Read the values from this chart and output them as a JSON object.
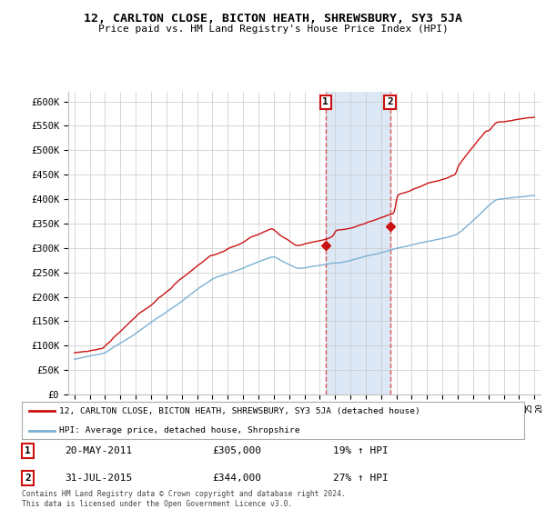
{
  "title": "12, CARLTON CLOSE, BICTON HEATH, SHREWSBURY, SY3 5JA",
  "subtitle": "Price paid vs. HM Land Registry's House Price Index (HPI)",
  "legend_line1": "12, CARLTON CLOSE, BICTON HEATH, SHREWSBURY, SY3 5JA (detached house)",
  "legend_line2": "HPI: Average price, detached house, Shropshire",
  "annotation1_date": "20-MAY-2011",
  "annotation1_price": "£305,000",
  "annotation1_hpi": "19% ↑ HPI",
  "annotation2_date": "31-JUL-2015",
  "annotation2_price": "£344,000",
  "annotation2_hpi": "27% ↑ HPI",
  "footer": "Contains HM Land Registry data © Crown copyright and database right 2024.\nThis data is licensed under the Open Government Licence v3.0.",
  "hpi_color": "#7ab0d4",
  "price_color": "#cc1111",
  "vline_color": "#e05555",
  "span_color": "#dce8f5",
  "annotation_box_color": "#cc1111",
  "ylim": [
    0,
    620000
  ],
  "yticks": [
    0,
    50000,
    100000,
    150000,
    200000,
    250000,
    300000,
    350000,
    400000,
    450000,
    500000,
    550000,
    600000
  ],
  "ytick_labels": [
    "£0",
    "£50K",
    "£100K",
    "£150K",
    "£200K",
    "£250K",
    "£300K",
    "£350K",
    "£400K",
    "£450K",
    "£500K",
    "£550K",
    "£600K"
  ],
  "sale1_year": 2011.38,
  "sale1_price": 305000,
  "sale2_year": 2015.58,
  "sale2_price": 344000
}
